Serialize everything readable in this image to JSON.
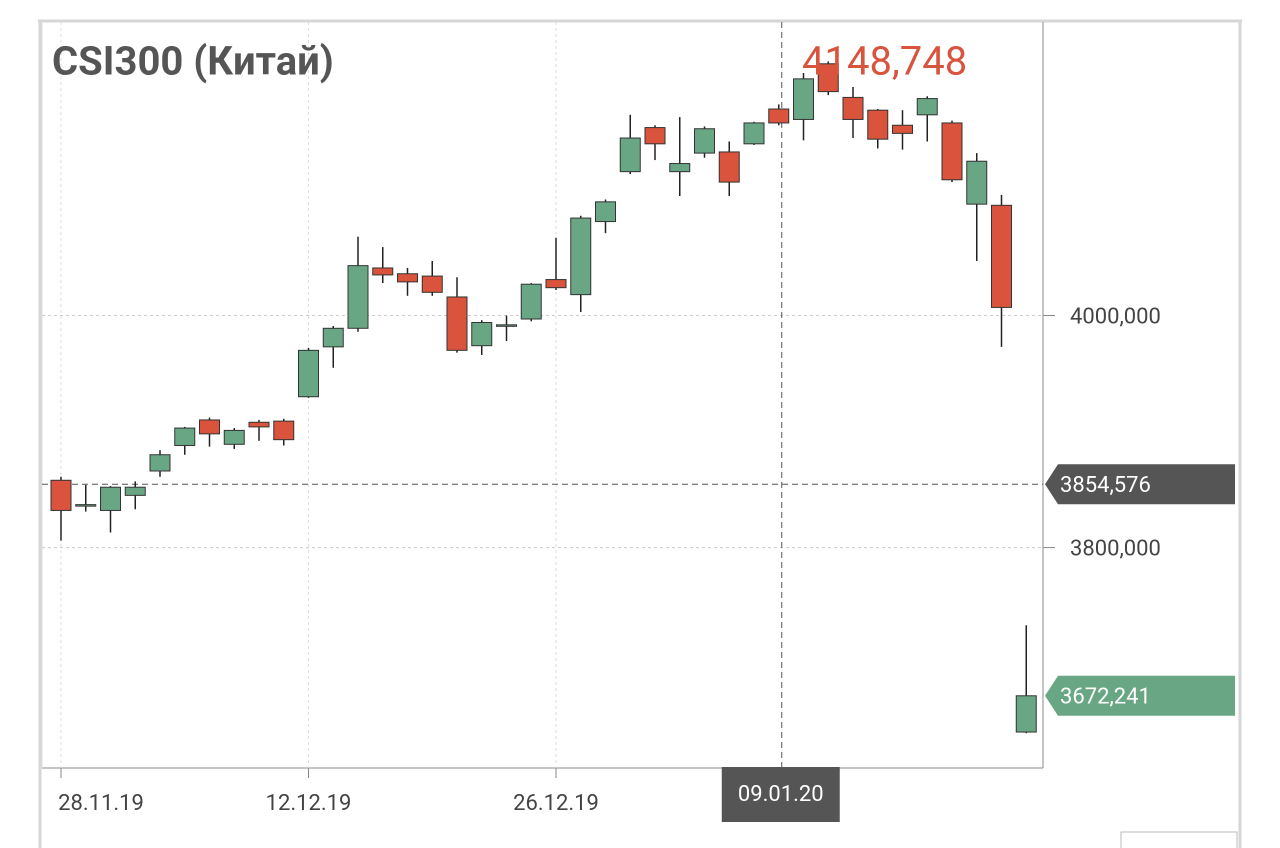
{
  "chart_data": {
    "type": "candlestick",
    "title": "CSI300 (Китай)",
    "header_value": {
      "value": 4148.748,
      "label": "4148,748"
    },
    "categories": [
      "28.11.19",
      null,
      null,
      null,
      null,
      null,
      null,
      null,
      null,
      null,
      "12.12.19",
      null,
      null,
      null,
      null,
      null,
      null,
      null,
      null,
      null,
      "26.12.19",
      null,
      null,
      null,
      null,
      null,
      null,
      null,
      null,
      null,
      null,
      null,
      null,
      null,
      null,
      null,
      null,
      null,
      null,
      null
    ],
    "open": [
      3858,
      3836,
      3832,
      3845,
      3866,
      3888,
      3910,
      3889,
      3908,
      3909,
      3930,
      3973,
      3989,
      4041,
      4036,
      4034,
      4016,
      3974,
      3991,
      3997,
      4031,
      4018,
      4081,
      4124,
      4162,
      4124,
      4140,
      4141,
      4148,
      4178,
      4169,
      4217,
      4188,
      4177,
      4164,
      4173,
      4166,
      4096,
      4095,
      3641
    ],
    "high": [
      3861,
      3854,
      3853,
      3857,
      3884,
      3904,
      3912,
      3903,
      3910,
      3911,
      3972,
      3991,
      4068,
      4059,
      4041,
      4047,
      4033,
      3996,
      4000,
      4028,
      4067,
      4086,
      4100,
      4173,
      4164,
      4171,
      4163,
      4150,
      4167,
      4182,
      4209,
      4219,
      4197,
      4178,
      4177,
      4189,
      4168,
      4140,
      4104,
      3733
    ],
    "low": [
      3806,
      3831,
      3813,
      3833,
      3861,
      3880,
      3887,
      3885,
      3892,
      3888,
      3929,
      3955,
      3986,
      4028,
      4017,
      4017,
      3968,
      3966,
      3978,
      3995,
      4022,
      4003,
      4071,
      4122,
      4134,
      4103,
      4136,
      4103,
      4147,
      4164,
      4151,
      4190,
      4153,
      4144,
      4143,
      4150,
      4115,
      4047,
      3973,
      3640
    ],
    "close": [
      3832,
      3837,
      3852,
      3852,
      3880,
      3903,
      3898,
      3901,
      3904,
      3893,
      3970,
      3989,
      4043,
      4035,
      4029,
      4020,
      3970,
      3994,
      3992,
      4027,
      4024,
      4084,
      4098,
      4153,
      4148,
      4131,
      4161,
      4115,
      4166,
      4166,
      4204,
      4193,
      4169,
      4152,
      4157,
      4187,
      4117,
      4133,
      4007,
      3672.241
    ],
    "up_color": "#69a784",
    "down_color": "#d9533d",
    "ylim": [
      3610,
      4253
    ],
    "yticks": [
      {
        "value": 3800,
        "label": "3800,000"
      },
      {
        "value": 4000,
        "label": "4000,000"
      }
    ],
    "grid": true,
    "crosshair": {
      "x_label": "09.01.20",
      "x_index": 29,
      "y": {
        "value": 3854.576,
        "label": "3854,576"
      }
    },
    "last_price": {
      "value": 3672.241,
      "label": "3672,241"
    }
  }
}
